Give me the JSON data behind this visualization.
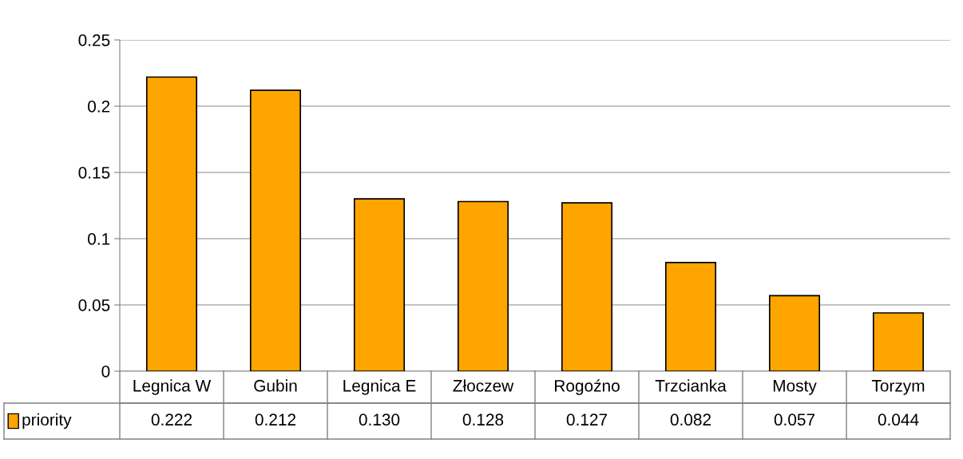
{
  "chart_data": {
    "type": "bar",
    "categories": [
      "Legnica W",
      "Gubin",
      "Legnica E",
      "Złoczew",
      "Rogoźno",
      "Trzcianka",
      "Mosty",
      "Torzym"
    ],
    "series": [
      {
        "name": "priority",
        "color": "#ffa500",
        "values": [
          0.222,
          0.212,
          0.13,
          0.128,
          0.127,
          0.082,
          0.057,
          0.044
        ],
        "value_labels": [
          "0.222",
          "0.212",
          "0.130",
          "0.128",
          "0.127",
          "0.082",
          "0.057",
          "0.044"
        ]
      }
    ],
    "ylim": [
      0,
      0.25
    ],
    "yticks": [
      0,
      0.05,
      0.1,
      0.15,
      0.2,
      0.25
    ],
    "grid": "y"
  }
}
